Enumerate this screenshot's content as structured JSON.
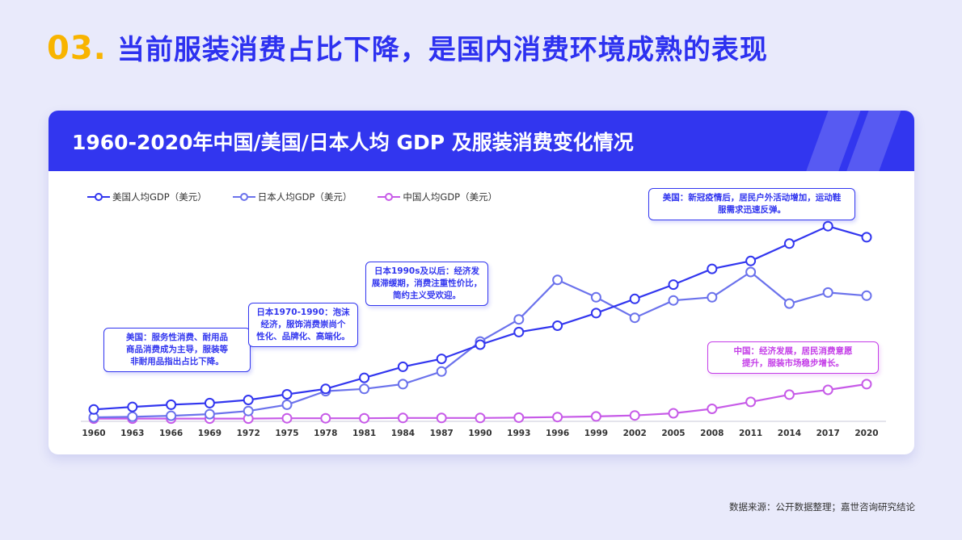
{
  "heading": {
    "number": "03",
    "dot": ".",
    "text": "当前服装消费占比下降，是国内消费环境成熟的表现"
  },
  "card": {
    "title": "1960-2020年中国/美国/日本人均 GDP 及服装消费变化情况"
  },
  "chart_data": {
    "type": "line",
    "title": "1960-2020年中国/美国/日本人均 GDP 及服装消费变化情况",
    "categories": [
      "1960",
      "1963",
      "1966",
      "1969",
      "1972",
      "1975",
      "1978",
      "1981",
      "1984",
      "1987",
      "1990",
      "1993",
      "1996",
      "1999",
      "2002",
      "2005",
      "2008",
      "2011",
      "2014",
      "2017",
      "2020"
    ],
    "ylim": [
      0,
      70000
    ],
    "grid": false,
    "legend_position": "top-left",
    "series": [
      {
        "name": "美国人均GDP（美元）",
        "color": "#3236ef",
        "values": [
          3000,
          3800,
          4500,
          5000,
          6000,
          7800,
          9500,
          13000,
          16500,
          19000,
          23500,
          27500,
          29500,
          33500,
          38000,
          42500,
          47500,
          50000,
          55500,
          61000,
          57500
        ]
      },
      {
        "name": "日本人均GDP（美元）",
        "color": "#6b72ec",
        "values": [
          500,
          700,
          1000,
          1500,
          2500,
          4500,
          8800,
          9500,
          11000,
          15000,
          24500,
          31500,
          44000,
          38500,
          32000,
          37500,
          38500,
          46500,
          36500,
          40000,
          39000
        ]
      },
      {
        "name": "中国人均GDP（美元）",
        "color": "#c75be8",
        "values": [
          100,
          100,
          100,
          100,
          100,
          200,
          200,
          200,
          300,
          300,
          300,
          400,
          600,
          800,
          1100,
          1800,
          3200,
          5400,
          7700,
          9200,
          11000
        ]
      }
    ]
  },
  "callouts": {
    "us_1": "美国：服务性消费、耐用品\n商品消费成为主导，服装等\n非耐用品指出占比下降。",
    "jp_1": "日本1970-1990：泡沫\n经济，服饰消费崇尚个\n性化、品牌化、高端化。",
    "jp_2": "日本1990s及以后：经济发\n展滞缓期，消费注重性价比，\n简约主义受欢迎。",
    "us_2": "美国：新冠疫情后，居民户外活动增加，运动鞋\n服需求迅速反弹。",
    "cn_1": "中国：经济发展，居民消费意愿\n提升，服装市场稳步增长。"
  },
  "source": "数据来源：公开数据整理；嘉世咨询研究结论"
}
